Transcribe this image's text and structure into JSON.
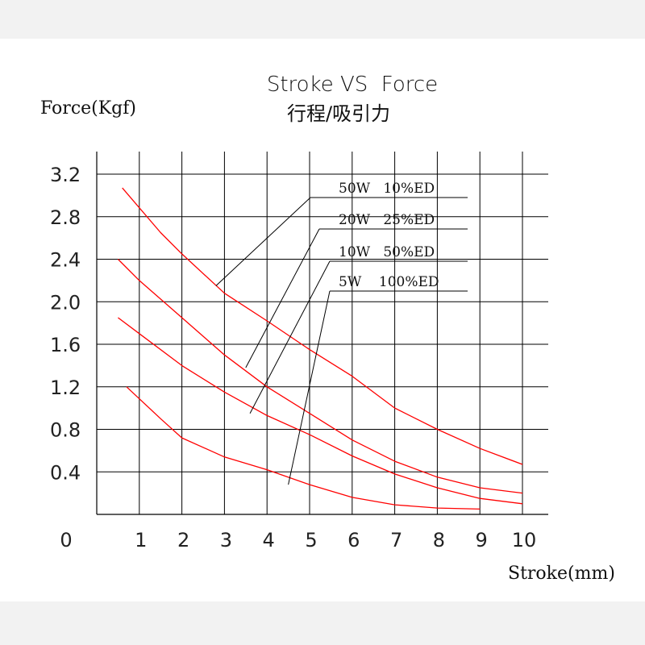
{
  "chart_data": {
    "type": "line",
    "title": "Stroke VS  Force",
    "subtitle": "行程/吸引力",
    "ylabel": "Force(Kgf)",
    "xlabel": "Stroke(mm)",
    "xlim": [
      0,
      10
    ],
    "ylim": [
      0,
      3.2
    ],
    "grid": true,
    "x_ticks": [
      "0",
      "1",
      "2",
      "3",
      "4",
      "5",
      "6",
      "7",
      "8",
      "9",
      "10"
    ],
    "y_ticks": [
      "0.4",
      "0.8",
      "1.2",
      "1.6",
      "2.0",
      "2.4",
      "2.8",
      "3.2"
    ],
    "y_tick_values": [
      0.4,
      0.8,
      1.2,
      1.6,
      2.0,
      2.4,
      2.8,
      3.2
    ],
    "series": [
      {
        "name": "50W   10%ED",
        "color": "#ff0000",
        "x": [
          0.6,
          1.5,
          2.0,
          3.0,
          4.0,
          5.0,
          6.0,
          7.0,
          8.0,
          9.0,
          10.0
        ],
        "y": [
          3.07,
          2.65,
          2.45,
          2.08,
          1.82,
          1.55,
          1.3,
          1.0,
          0.8,
          0.62,
          0.47
        ]
      },
      {
        "name": "20W   25%ED",
        "color": "#ff0000",
        "x": [
          0.5,
          1.0,
          2.0,
          3.0,
          4.0,
          5.0,
          6.0,
          7.0,
          8.0,
          9.0,
          10.0
        ],
        "y": [
          2.4,
          2.2,
          1.85,
          1.5,
          1.2,
          0.95,
          0.7,
          0.5,
          0.35,
          0.25,
          0.2
        ]
      },
      {
        "name": "10W   50%ED",
        "color": "#ff0000",
        "x": [
          0.5,
          1.0,
          2.0,
          3.0,
          4.0,
          5.0,
          6.0,
          7.0,
          8.0,
          9.0,
          10.0
        ],
        "y": [
          1.85,
          1.7,
          1.4,
          1.15,
          0.93,
          0.75,
          0.55,
          0.38,
          0.25,
          0.15,
          0.1
        ]
      },
      {
        "name": "5W    100%ED",
        "color": "#ff0000",
        "x": [
          0.7,
          1.5,
          2.0,
          3.0,
          4.0,
          5.0,
          6.0,
          7.0,
          8.0,
          9.0
        ],
        "y": [
          1.2,
          0.9,
          0.72,
          0.54,
          0.42,
          0.28,
          0.16,
          0.09,
          0.06,
          0.05
        ]
      }
    ],
    "leader_targets": [
      {
        "x": 2.8,
        "y": 2.15
      },
      {
        "x": 3.5,
        "y": 1.38
      },
      {
        "x": 3.6,
        "y": 0.95
      },
      {
        "x": 4.5,
        "y": 0.28
      }
    ]
  }
}
